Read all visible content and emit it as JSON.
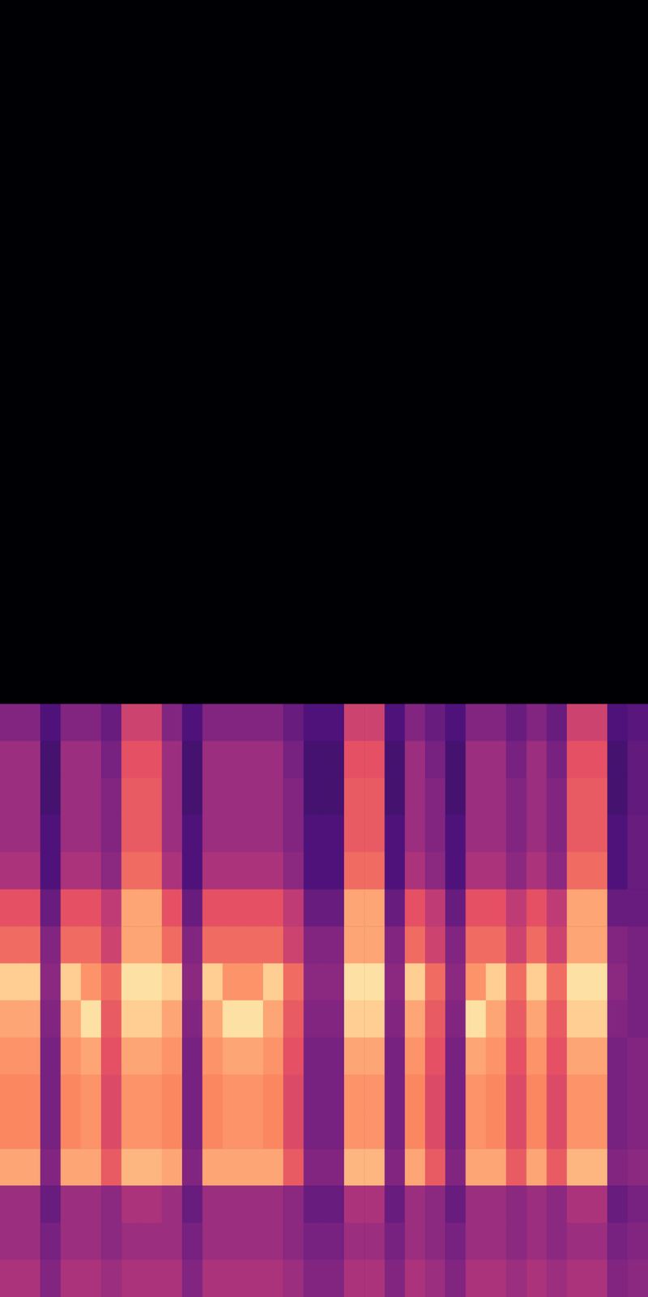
{
  "chart_data": {
    "type": "heatmap",
    "color": "magma",
    "tick_labels": false,
    "grid": false,
    "zlim": [
      -80,
      0
    ],
    "values": [
      [
        -80,
        -80,
        -80,
        -80,
        -80,
        -80,
        -80,
        -80,
        -80,
        -80,
        -80,
        -80,
        -80,
        -80,
        -80,
        -80,
        -80,
        -80,
        -80,
        -80,
        -80,
        -80,
        -80,
        -80,
        -80,
        -80,
        -80,
        -80,
        -80,
        -80,
        -80,
        -80
      ],
      [
        -80,
        -80,
        -80,
        -80,
        -80,
        -80,
        -80,
        -80,
        -80,
        -80,
        -80,
        -80,
        -80,
        -80,
        -80,
        -80,
        -80,
        -80,
        -80,
        -80,
        -80,
        -80,
        -80,
        -80,
        -80,
        -80,
        -80,
        -80,
        -80,
        -80,
        -80,
        -80
      ],
      [
        -80,
        -80,
        -80,
        -80,
        -80,
        -80,
        -80,
        -80,
        -80,
        -80,
        -80,
        -80,
        -80,
        -80,
        -80,
        -80,
        -80,
        -80,
        -80,
        -80,
        -80,
        -80,
        -80,
        -80,
        -80,
        -80,
        -80,
        -80,
        -80,
        -80,
        -80,
        -80
      ],
      [
        -80,
        -80,
        -80,
        -80,
        -80,
        -80,
        -80,
        -80,
        -80,
        -80,
        -80,
        -80,
        -80,
        -80,
        -80,
        -80,
        -80,
        -80,
        -80,
        -80,
        -80,
        -80,
        -80,
        -80,
        -80,
        -80,
        -80,
        -80,
        -80,
        -80,
        -80,
        -80
      ],
      [
        -80,
        -80,
        -80,
        -80,
        -80,
        -80,
        -80,
        -80,
        -80,
        -80,
        -80,
        -80,
        -80,
        -80,
        -80,
        -80,
        -80,
        -80,
        -80,
        -80,
        -80,
        -80,
        -80,
        -80,
        -80,
        -80,
        -80,
        -80,
        -80,
        -80,
        -80,
        -80
      ],
      [
        -80,
        -80,
        -80,
        -80,
        -80,
        -80,
        -80,
        -80,
        -80,
        -80,
        -80,
        -80,
        -80,
        -80,
        -80,
        -80,
        -80,
        -80,
        -80,
        -80,
        -80,
        -80,
        -80,
        -80,
        -80,
        -80,
        -80,
        -80,
        -80,
        -80,
        -80,
        -80
      ],
      [
        -80,
        -80,
        -80,
        -80,
        -80,
        -80,
        -80,
        -80,
        -80,
        -80,
        -80,
        -80,
        -80,
        -80,
        -80,
        -80,
        -80,
        -80,
        -80,
        -80,
        -80,
        -80,
        -80,
        -80,
        -80,
        -80,
        -80,
        -80,
        -80,
        -80,
        -80,
        -80
      ],
      [
        -80,
        -80,
        -80,
        -80,
        -80,
        -80,
        -80,
        -80,
        -80,
        -80,
        -80,
        -80,
        -80,
        -80,
        -80,
        -80,
        -80,
        -80,
        -80,
        -80,
        -80,
        -80,
        -80,
        -80,
        -80,
        -80,
        -80,
        -80,
        -80,
        -80,
        -80,
        -80
      ],
      [
        -80,
        -80,
        -80,
        -80,
        -80,
        -80,
        -80,
        -80,
        -80,
        -80,
        -80,
        -80,
        -80,
        -80,
        -80,
        -80,
        -80,
        -80,
        -80,
        -80,
        -80,
        -80,
        -80,
        -80,
        -80,
        -80,
        -80,
        -80,
        -80,
        -80,
        -80,
        -80
      ],
      [
        -80,
        -80,
        -80,
        -80,
        -80,
        -80,
        -80,
        -80,
        -80,
        -80,
        -80,
        -80,
        -80,
        -80,
        -80,
        -80,
        -80,
        -80,
        -80,
        -80,
        -80,
        -80,
        -80,
        -80,
        -80,
        -80,
        -80,
        -80,
        -80,
        -80,
        -80,
        -80
      ],
      [
        -80,
        -80,
        -80,
        -80,
        -80,
        -80,
        -80,
        -80,
        -80,
        -80,
        -80,
        -80,
        -80,
        -80,
        -80,
        -80,
        -80,
        -80,
        -80,
        -80,
        -80,
        -80,
        -80,
        -80,
        -80,
        -80,
        -80,
        -80,
        -80,
        -80,
        -80,
        -80
      ],
      [
        -80,
        -80,
        -80,
        -80,
        -80,
        -80,
        -80,
        -80,
        -80,
        -80,
        -80,
        -80,
        -80,
        -80,
        -80,
        -80,
        -80,
        -80,
        -80,
        -80,
        -80,
        -80,
        -80,
        -80,
        -80,
        -80,
        -80,
        -80,
        -80,
        -80,
        -80,
        -80
      ],
      [
        -80,
        -80,
        -80,
        -80,
        -80,
        -80,
        -80,
        -80,
        -80,
        -80,
        -80,
        -80,
        -80,
        -80,
        -80,
        -80,
        -80,
        -80,
        -80,
        -80,
        -80,
        -80,
        -80,
        -80,
        -80,
        -80,
        -80,
        -80,
        -80,
        -80,
        -80,
        -80
      ],
      [
        -80,
        -80,
        -80,
        -80,
        -80,
        -80,
        -80,
        -80,
        -80,
        -80,
        -80,
        -80,
        -80,
        -80,
        -80,
        -80,
        -80,
        -80,
        -80,
        -80,
        -80,
        -80,
        -80,
        -80,
        -80,
        -80,
        -80,
        -80,
        -80,
        -80,
        -80,
        -80
      ],
      [
        -80,
        -80,
        -80,
        -80,
        -80,
        -80,
        -80,
        -80,
        -80,
        -80,
        -80,
        -80,
        -80,
        -80,
        -80,
        -80,
        -80,
        -80,
        -80,
        -80,
        -80,
        -80,
        -80,
        -80,
        -80,
        -80,
        -80,
        -80,
        -80,
        -80,
        -80,
        -80
      ],
      [
        -80,
        -80,
        -80,
        -80,
        -80,
        -80,
        -80,
        -80,
        -80,
        -80,
        -80,
        -80,
        -80,
        -80,
        -80,
        -80,
        -80,
        -80,
        -80,
        -80,
        -80,
        -80,
        -80,
        -80,
        -80,
        -80,
        -80,
        -80,
        -80,
        -80,
        -80,
        -80
      ],
      [
        -80,
        -80,
        -80,
        -80,
        -80,
        -80,
        -80,
        -80,
        -80,
        -80,
        -80,
        -80,
        -80,
        -80,
        -80,
        -80,
        -80,
        -80,
        -80,
        -80,
        -80,
        -80,
        -80,
        -80,
        -80,
        -80,
        -80,
        -80,
        -80,
        -80,
        -80,
        -80
      ],
      [
        -80,
        -80,
        -80,
        -80,
        -80,
        -80,
        -80,
        -80,
        -80,
        -80,
        -80,
        -80,
        -80,
        -80,
        -80,
        -80,
        -80,
        -80,
        -80,
        -80,
        -80,
        -80,
        -80,
        -80,
        -80,
        -80,
        -80,
        -80,
        -80,
        -80,
        -80,
        -80
      ],
      [
        -80,
        -80,
        -80,
        -80,
        -80,
        -80,
        -80,
        -80,
        -80,
        -80,
        -80,
        -80,
        -80,
        -80,
        -80,
        -80,
        -80,
        -80,
        -80,
        -80,
        -80,
        -80,
        -80,
        -80,
        -80,
        -80,
        -80,
        -80,
        -80,
        -80,
        -80,
        -80
      ],
      [
        -50,
        -50,
        -60,
        -50,
        -50,
        -55,
        -35,
        -35,
        -50,
        -60,
        -50,
        -50,
        -50,
        -50,
        -55,
        -60,
        -60,
        -35,
        -35,
        -60,
        -50,
        -55,
        -60,
        -50,
        -50,
        -55,
        -50,
        -55,
        -35,
        -35,
        -60,
        -58
      ],
      [
        -45,
        -45,
        -62,
        -45,
        -45,
        -52,
        -30,
        -30,
        -45,
        -62,
        -45,
        -45,
        -45,
        -45,
        -52,
        -62,
        -62,
        -30,
        -30,
        -62,
        -45,
        -52,
        -62,
        -45,
        -45,
        -52,
        -45,
        -52,
        -30,
        -30,
        -62,
        -56
      ],
      [
        -45,
        -45,
        -62,
        -45,
        -45,
        -50,
        -28,
        -28,
        -45,
        -62,
        -45,
        -45,
        -45,
        -45,
        -50,
        -62,
        -62,
        -28,
        -28,
        -62,
        -45,
        -50,
        -62,
        -45,
        -45,
        -50,
        -45,
        -50,
        -28,
        -28,
        -62,
        -56
      ],
      [
        -45,
        -45,
        -60,
        -45,
        -45,
        -50,
        -28,
        -28,
        -45,
        -60,
        -45,
        -45,
        -45,
        -45,
        -50,
        -60,
        -60,
        -28,
        -28,
        -60,
        -45,
        -50,
        -60,
        -45,
        -45,
        -50,
        -45,
        -50,
        -28,
        -28,
        -60,
        -55
      ],
      [
        -42,
        -42,
        -60,
        -42,
        -42,
        -48,
        -25,
        -25,
        -42,
        -60,
        -42,
        -42,
        -42,
        -42,
        -48,
        -60,
        -60,
        -25,
        -25,
        -60,
        -42,
        -48,
        -60,
        -42,
        -42,
        -48,
        -42,
        -48,
        -25,
        -25,
        -60,
        -55
      ],
      [
        -30,
        -30,
        -55,
        -30,
        -30,
        -38,
        -15,
        -15,
        -30,
        -55,
        -30,
        -30,
        -30,
        -30,
        -38,
        -55,
        -55,
        -15,
        -15,
        -55,
        -30,
        -38,
        -55,
        -30,
        -30,
        -38,
        -30,
        -38,
        -15,
        -15,
        -55,
        -55
      ],
      [
        -25,
        -25,
        -50,
        -25,
        -25,
        -35,
        -15,
        -15,
        -25,
        -50,
        -25,
        -25,
        -25,
        -25,
        -35,
        -50,
        -50,
        -15,
        -15,
        -50,
        -25,
        -35,
        -50,
        -25,
        -25,
        -35,
        -25,
        -35,
        -15,
        -15,
        -50,
        -52
      ],
      [
        -8,
        -8,
        -48,
        -8,
        -18,
        -25,
        -5,
        -5,
        -8,
        -48,
        -8,
        -18,
        -18,
        -8,
        -25,
        -48,
        -48,
        -5,
        -5,
        -48,
        -8,
        -25,
        -48,
        -18,
        -8,
        -25,
        -8,
        -25,
        -5,
        -5,
        -48,
        -52
      ],
      [
        -15,
        -15,
        -50,
        -15,
        -5,
        -28,
        -8,
        -8,
        -15,
        -50,
        -15,
        -5,
        -5,
        -15,
        -28,
        -50,
        -50,
        -8,
        -8,
        -50,
        -15,
        -28,
        -50,
        -5,
        -15,
        -28,
        -15,
        -28,
        -8,
        -8,
        -50,
        -52
      ],
      [
        -18,
        -18,
        -52,
        -18,
        -15,
        -30,
        -15,
        -15,
        -18,
        -52,
        -18,
        -15,
        -15,
        -18,
        -30,
        -52,
        -52,
        -15,
        -15,
        -52,
        -18,
        -30,
        -52,
        -15,
        -18,
        -30,
        -18,
        -30,
        -15,
        -15,
        -52,
        -50
      ],
      [
        -20,
        -20,
        -52,
        -20,
        -18,
        -32,
        -18,
        -18,
        -20,
        -52,
        -20,
        -18,
        -18,
        -20,
        -32,
        -52,
        -52,
        -18,
        -18,
        -52,
        -20,
        -32,
        -52,
        -18,
        -20,
        -32,
        -20,
        -32,
        -18,
        -18,
        -52,
        -50
      ],
      [
        -20,
        -20,
        -52,
        -20,
        -18,
        -32,
        -18,
        -18,
        -20,
        -52,
        -20,
        -18,
        -18,
        -20,
        -32,
        -52,
        -52,
        -18,
        -18,
        -52,
        -20,
        -32,
        -52,
        -18,
        -20,
        -32,
        -20,
        -32,
        -18,
        -18,
        -52,
        -50
      ],
      [
        -15,
        -15,
        -50,
        -15,
        -15,
        -28,
        -12,
        -12,
        -15,
        -50,
        -15,
        -15,
        -15,
        -15,
        -28,
        -50,
        -50,
        -12,
        -12,
        -50,
        -15,
        -28,
        -50,
        -15,
        -15,
        -28,
        -15,
        -28,
        -12,
        -12,
        -50,
        -48
      ],
      [
        -45,
        -45,
        -55,
        -45,
        -45,
        -48,
        -42,
        -42,
        -45,
        -55,
        -45,
        -45,
        -45,
        -45,
        -48,
        -55,
        -55,
        -42,
        -42,
        -55,
        -45,
        -48,
        -55,
        -45,
        -45,
        -48,
        -45,
        -48,
        -42,
        -42,
        -55,
        -52
      ],
      [
        -45,
        -45,
        -52,
        -45,
        -45,
        -48,
        -45,
        -45,
        -45,
        -52,
        -45,
        -45,
        -45,
        -45,
        -48,
        -52,
        -52,
        -45,
        -45,
        -52,
        -45,
        -48,
        -52,
        -45,
        -45,
        -48,
        -45,
        -48,
        -45,
        -45,
        -52,
        -50
      ],
      [
        -42,
        -42,
        -50,
        -42,
        -42,
        -45,
        -42,
        -42,
        -42,
        -50,
        -42,
        -42,
        -42,
        -42,
        -45,
        -50,
        -50,
        -42,
        -42,
        -50,
        -42,
        -45,
        -50,
        -42,
        -42,
        -45,
        -42,
        -45,
        -42,
        -42,
        -50,
        -48
      ]
    ]
  }
}
